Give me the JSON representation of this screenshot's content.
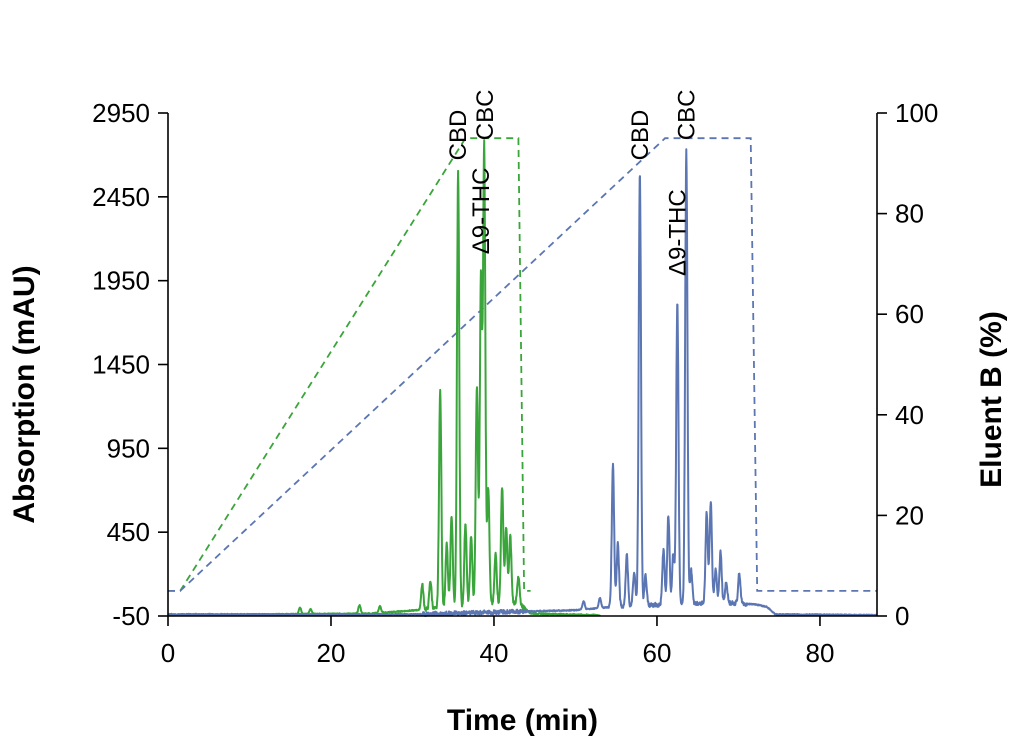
{
  "chart_data": {
    "type": "line",
    "xlabel": "Time (min)",
    "ylabel": "Absorption (mAU)",
    "y2label": "Eluent B (%)",
    "xlim": [
      0,
      87
    ],
    "ylim": [
      -50,
      2950
    ],
    "y2lim": [
      0,
      100
    ],
    "xticks": [
      0,
      20,
      40,
      60,
      80
    ],
    "yticks": [
      -50,
      450,
      950,
      1450,
      1950,
      2450,
      2950
    ],
    "y2ticks": [
      0,
      20,
      40,
      60,
      80,
      100
    ],
    "grid": false,
    "colors": {
      "green": "#3aa53a",
      "blue": "#5b76b2"
    },
    "gradients": [
      {
        "color": "#3aa53a",
        "style": "dashed",
        "axis": "right",
        "x": [
          0,
          1.5,
          36.5,
          43,
          43.7,
          44.5
        ],
        "y": [
          5,
          5,
          95,
          95,
          5,
          5
        ]
      },
      {
        "color": "#5b76b2",
        "style": "dashed",
        "axis": "right",
        "x": [
          0,
          1.5,
          61,
          71.5,
          72.3,
          87
        ],
        "y": [
          5,
          5,
          95,
          95,
          5,
          5
        ]
      }
    ],
    "chromatograms": [
      {
        "color": "#3aa53a",
        "axis": "left",
        "baseline_start": [
          0,
          -45
        ],
        "baseline_end": [
          53,
          -45
        ],
        "drift": [
          [
            0,
            -45
          ],
          [
            25,
            -35
          ],
          [
            32,
            -10
          ],
          [
            40,
            20
          ],
          [
            43,
            30
          ],
          [
            44.5,
            -35
          ],
          [
            53,
            -45
          ]
        ],
        "peaks": [
          [
            16.2,
            40
          ],
          [
            17.5,
            30
          ],
          [
            23.5,
            50
          ],
          [
            26,
            40
          ],
          [
            31.2,
            150
          ],
          [
            32.2,
            170
          ],
          [
            33.4,
            1300
          ],
          [
            34.2,
            380
          ],
          [
            34.8,
            550
          ],
          [
            35.6,
            2600
          ],
          [
            36.5,
            500
          ],
          [
            37.2,
            420
          ],
          [
            37.9,
            1300
          ],
          [
            38.4,
            1950
          ],
          [
            38.8,
            2730
          ],
          [
            39.3,
            700
          ],
          [
            40.2,
            300
          ],
          [
            41.0,
            700
          ],
          [
            41.5,
            450
          ],
          [
            42.0,
            400
          ],
          [
            43.0,
            150
          ]
        ]
      },
      {
        "color": "#5b76b2",
        "axis": "left",
        "baseline_start": [
          0,
          -40
        ],
        "baseline_end": [
          87,
          -45
        ],
        "drift": [
          [
            0,
            -40
          ],
          [
            30,
            -40
          ],
          [
            50,
            -15
          ],
          [
            56,
            10
          ],
          [
            68,
            30
          ],
          [
            72,
            20
          ],
          [
            73.5,
            5
          ],
          [
            74.5,
            -40
          ],
          [
            87,
            -45
          ]
        ],
        "peaks": [
          [
            51,
            50
          ],
          [
            53,
            60
          ],
          [
            54.6,
            850
          ],
          [
            55.2,
            380
          ],
          [
            56.3,
            300
          ],
          [
            57.2,
            200
          ],
          [
            57.9,
            2580
          ],
          [
            58.6,
            180
          ],
          [
            60.8,
            330
          ],
          [
            61.4,
            530
          ],
          [
            62.0,
            300
          ],
          [
            62.5,
            1800
          ],
          [
            63.6,
            2700
          ],
          [
            64.2,
            200
          ],
          [
            66.1,
            540
          ],
          [
            66.6,
            600
          ],
          [
            67.2,
            200
          ],
          [
            67.8,
            300
          ],
          [
            68.5,
            120
          ],
          [
            70.1,
            180
          ]
        ]
      }
    ],
    "annotations": [
      {
        "text": "CBD",
        "x": 35.6,
        "y": 2620,
        "color": "green"
      },
      {
        "text": "CBC",
        "x": 38.9,
        "y": 2740,
        "color": "green"
      },
      {
        "text": "Δ9-THC",
        "x": 38.4,
        "y": 2060,
        "color": "green"
      },
      {
        "text": "CBD",
        "x": 57.9,
        "y": 2620,
        "color": "blue"
      },
      {
        "text": "CBC",
        "x": 63.6,
        "y": 2740,
        "color": "blue"
      },
      {
        "text": "Δ9-THC",
        "x": 62.5,
        "y": 1930,
        "color": "blue"
      }
    ]
  }
}
